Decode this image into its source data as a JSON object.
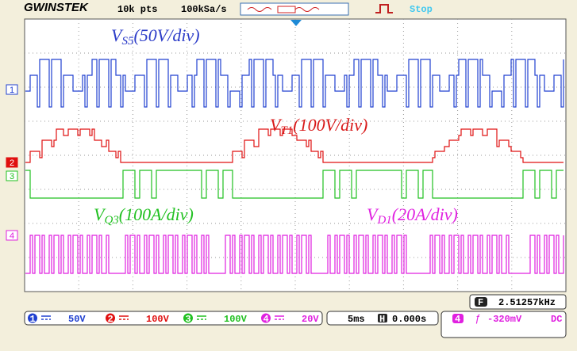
{
  "header": {
    "brand": "GWINSTEK",
    "points": "10k pts",
    "sample_rate": "100kSa/s",
    "status": "Stop"
  },
  "channels": [
    {
      "marker": "1",
      "label": {
        "main": "V",
        "sub": "S5",
        "scale": "(50V/div)"
      }
    },
    {
      "marker": "2",
      "label": {
        "main": "V",
        "sub": "T1",
        "scale": "(100V/div)"
      }
    },
    {
      "marker": "3",
      "label": {
        "main": "V",
        "sub": "Q3",
        "scale": "(100A/div)"
      }
    },
    {
      "marker": "4",
      "label": {
        "main": "V",
        "sub": "D1",
        "scale": "(20A/div)"
      }
    }
  ],
  "footer": {
    "channels": [
      {
        "id": "1",
        "scale": "50V"
      },
      {
        "id": "2",
        "scale": "100V"
      },
      {
        "id": "3",
        "scale": "100V"
      },
      {
        "id": "4",
        "scale": "20V"
      }
    ],
    "timebase": "5ms",
    "position_icon": "H",
    "position": "0.000s",
    "trigger": {
      "source": "4",
      "level": "-320mV",
      "coupling": "DC"
    },
    "frequency_icon": "F",
    "frequency": "2.51257kHz"
  }
}
